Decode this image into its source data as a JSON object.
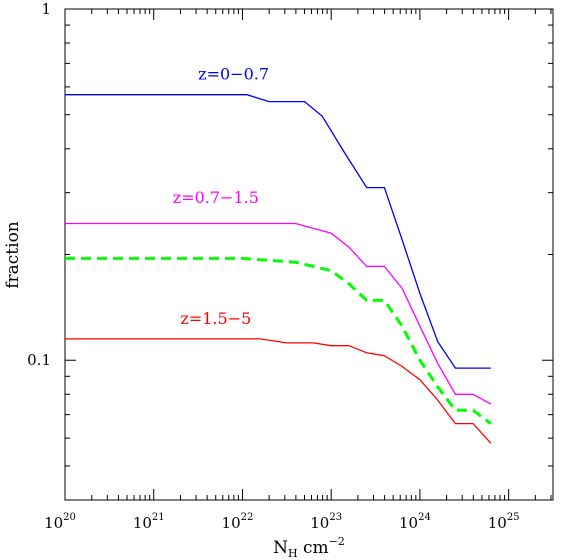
{
  "chart_data": {
    "type": "line",
    "title": "",
    "xlabel": {
      "base": "N",
      "sub": "H",
      "unit": " cm",
      "unit_exp": "−2"
    },
    "ylabel": "fraction",
    "xscale": "log",
    "yscale": "log",
    "xlim": [
      20,
      25.5
    ],
    "ylim": [
      0.04,
      1.0
    ],
    "grid": false,
    "legend": "none",
    "x_ticks": [
      {
        "base": "10",
        "exp": "20",
        "v": 20
      },
      {
        "base": "10",
        "exp": "21",
        "v": 21
      },
      {
        "base": "10",
        "exp": "22",
        "v": 22
      },
      {
        "base": "10",
        "exp": "23",
        "v": 23
      },
      {
        "base": "10",
        "exp": "24",
        "v": 24
      },
      {
        "base": "10",
        "exp": "25",
        "v": 25
      }
    ],
    "y_ticks": [
      {
        "label": "1",
        "v": 1.0
      },
      {
        "label": "0.1",
        "v": 0.1
      }
    ],
    "series": [
      {
        "name": "z=0−0.7",
        "color": "#0000ff",
        "dashed": false,
        "x": [
          20.0,
          22.05,
          22.3,
          22.7,
          22.9,
          23.15,
          23.4,
          23.6,
          23.8,
          24.0,
          24.2,
          24.4,
          24.8
        ],
        "y": [
          0.57,
          0.57,
          0.545,
          0.545,
          0.495,
          0.39,
          0.31,
          0.31,
          0.22,
          0.155,
          0.113,
          0.095,
          0.095
        ]
      },
      {
        "name": "z=0.7−1.5",
        "color": "#ff00ff",
        "dashed": false,
        "x": [
          20.0,
          22.6,
          23.0,
          23.2,
          23.4,
          23.6,
          23.8,
          24.0,
          24.2,
          24.4,
          24.6,
          24.8
        ],
        "y": [
          0.245,
          0.245,
          0.23,
          0.21,
          0.185,
          0.185,
          0.16,
          0.125,
          0.098,
          0.08,
          0.08,
          0.075
        ]
      },
      {
        "name": "",
        "color": "#00ff00",
        "dashed": true,
        "x": [
          20.0,
          22.0,
          22.6,
          23.0,
          23.2,
          23.4,
          23.6,
          23.8,
          24.0,
          24.2,
          24.4,
          24.6,
          24.8
        ],
        "y": [
          0.195,
          0.195,
          0.19,
          0.18,
          0.165,
          0.148,
          0.148,
          0.125,
          0.1,
          0.084,
          0.072,
          0.072,
          0.066
        ]
      },
      {
        "name": "z=1.5−5",
        "color": "#ff0000",
        "dashed": false,
        "x": [
          20.0,
          22.2,
          22.5,
          22.8,
          23.0,
          23.2,
          23.4,
          23.6,
          23.8,
          24.0,
          24.2,
          24.4,
          24.6,
          24.8
        ],
        "y": [
          0.115,
          0.115,
          0.112,
          0.112,
          0.11,
          0.11,
          0.105,
          0.103,
          0.096,
          0.088,
          0.077,
          0.066,
          0.066,
          0.058
        ]
      }
    ],
    "annotations": [
      {
        "text": "z=0−0.7",
        "color": "#0000ff",
        "at_x": 21.9,
        "at_y": 0.63
      },
      {
        "text": "z=0.7−1.5",
        "color": "#ff00ff",
        "at_x": 21.7,
        "at_y": 0.28
      },
      {
        "text": "z=1.5−5",
        "color": "#ff0000",
        "at_x": 21.7,
        "at_y": 0.127
      }
    ]
  }
}
